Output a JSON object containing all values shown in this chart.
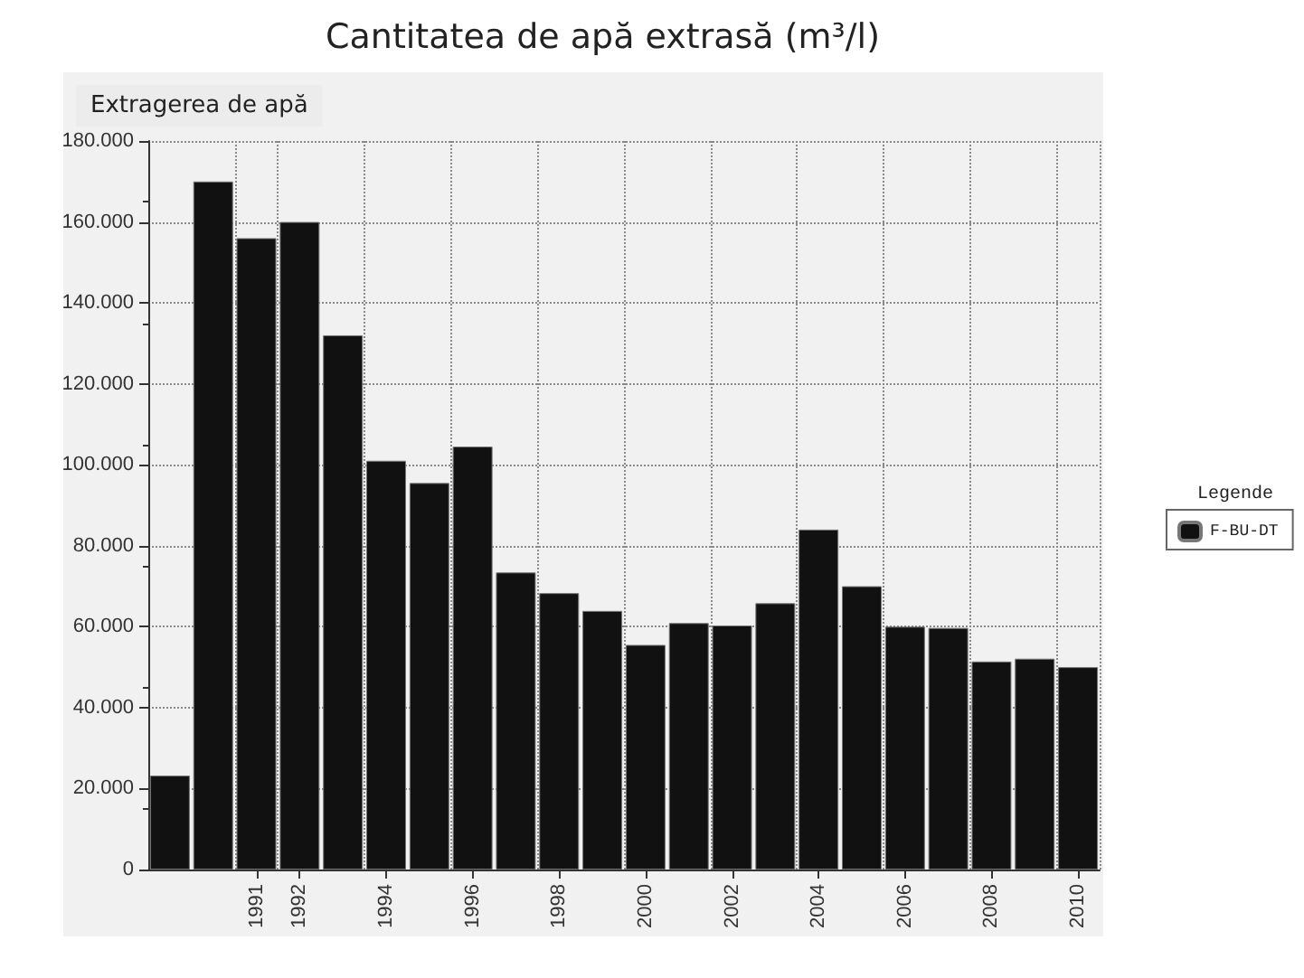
{
  "chart_data": {
    "type": "bar",
    "title": "Cantitatea de apă extrasă (m³/l)",
    "ylabel": "Extragerea de apă",
    "legend_title": "Legende",
    "categories": [
      null,
      null,
      "1991",
      "1992",
      null,
      "1994",
      null,
      "1996",
      null,
      "1998",
      null,
      "2000",
      null,
      "2002",
      null,
      "2004",
      null,
      "2006",
      null,
      "2008",
      null,
      "2010"
    ],
    "series": [
      {
        "name": "F-BU-DT",
        "color": "#111111",
        "values": [
          23200,
          170000,
          156000,
          160000,
          132000,
          101000,
          95500,
          104500,
          73400,
          68300,
          63900,
          55500,
          60900,
          60300,
          65800,
          84000,
          70000,
          60000,
          59700,
          51400,
          52100,
          50000
        ]
      }
    ],
    "ylim": [
      0,
      180000
    ],
    "yticks": [
      {
        "value": 0,
        "label": "0"
      },
      {
        "value": 20000,
        "label": "20.000"
      },
      {
        "value": 40000,
        "label": "40.000"
      },
      {
        "value": 60000,
        "label": "60.000"
      },
      {
        "value": 80000,
        "label": "80.000"
      },
      {
        "value": 100000,
        "label": "100.000"
      },
      {
        "value": 120000,
        "label": "120.000"
      },
      {
        "value": 140000,
        "label": "140.000"
      },
      {
        "value": 160000,
        "label": "160.000"
      },
      {
        "value": 180000,
        "label": "180.000"
      }
    ],
    "grid": true,
    "legend": "right"
  }
}
